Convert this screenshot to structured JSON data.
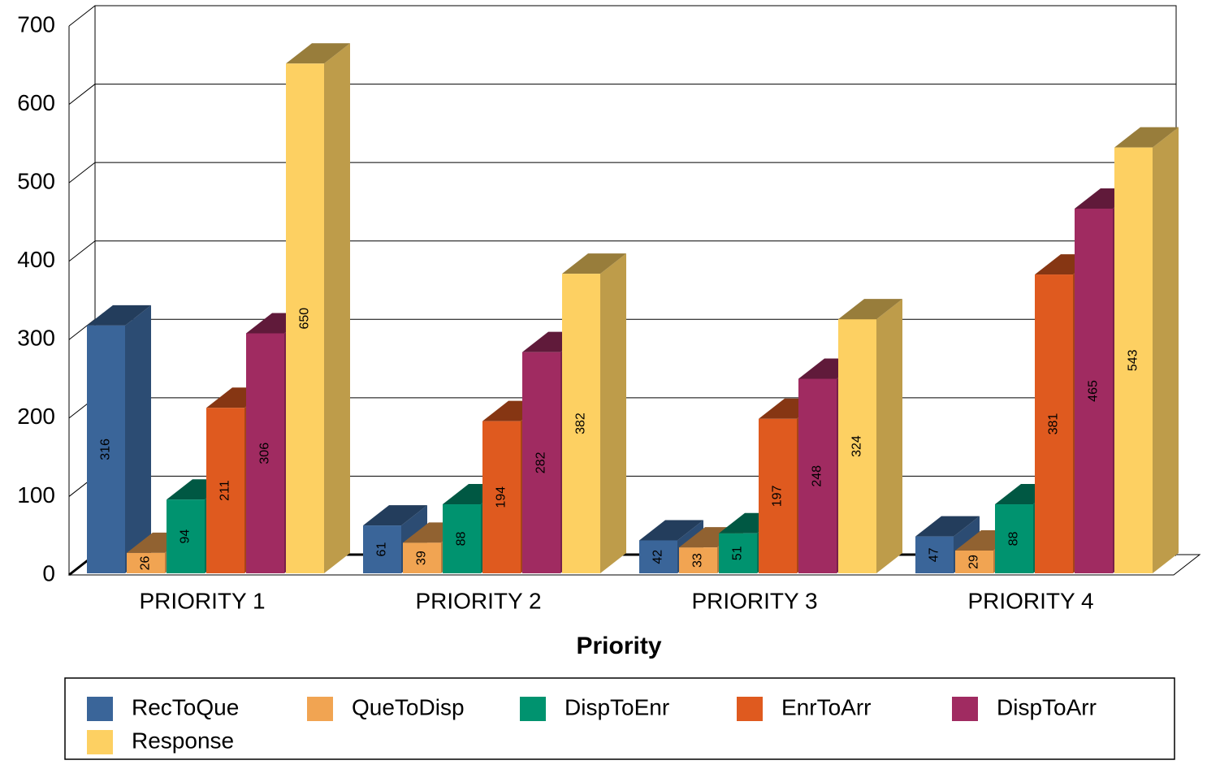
{
  "chart_data": {
    "type": "bar3d",
    "x_label": "Priority",
    "categories": [
      "PRIORITY 1",
      "PRIORITY 2",
      "PRIORITY 3",
      "PRIORITY 4"
    ],
    "series": [
      {
        "name": "RecToQue",
        "color": "#3a6599",
        "values": [
          316,
          61,
          42,
          47
        ]
      },
      {
        "name": "QueToDisp",
        "color": "#f1a452",
        "values": [
          26,
          39,
          33,
          29
        ]
      },
      {
        "name": "DispToEnr",
        "color": "#00936f",
        "values": [
          94,
          88,
          51,
          88
        ]
      },
      {
        "name": "EnrToArr",
        "color": "#df5a1f",
        "values": [
          211,
          194,
          197,
          381
        ]
      },
      {
        "name": "DispToArr",
        "color": "#a02b61",
        "values": [
          306,
          282,
          248,
          465
        ]
      },
      {
        "name": "Response",
        "color": "#fdd062",
        "values": [
          650,
          382,
          324,
          543
        ]
      }
    ],
    "ylim": [
      0,
      700
    ],
    "yticks": [
      0,
      100,
      200,
      300,
      400,
      500,
      600,
      700
    ],
    "grid": true
  }
}
